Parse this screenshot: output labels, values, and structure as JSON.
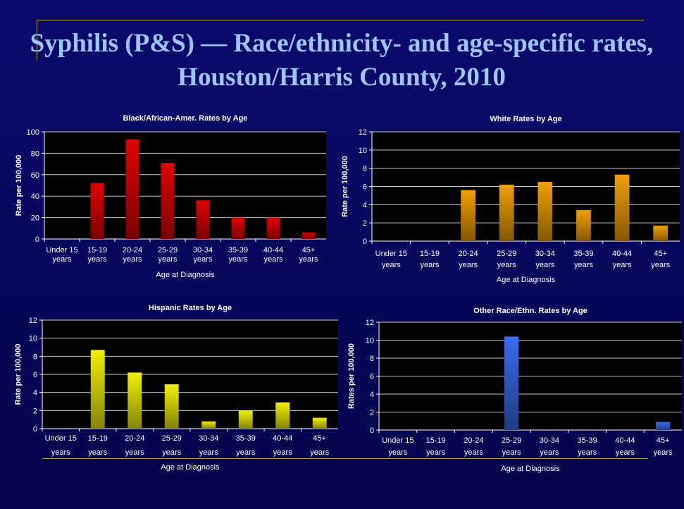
{
  "slide": {
    "title": "Syphilis (P&S) — Race/ethnicity- and age-specific rates, Houston/Harris County, 2010"
  },
  "chart_data": [
    {
      "type": "bar",
      "title": "Black/African-Amer. Rates by Age",
      "xlabel": "Age at Diagnosis",
      "ylabel": "Rate per 100,000",
      "categories": [
        "Under 15|years",
        "15-19|years",
        "20-24|years",
        "25-29|years",
        "30-34|years",
        "35-39|years",
        "40-44|years",
        "45+|years"
      ],
      "values": [
        0,
        52,
        93,
        71,
        36,
        20,
        20,
        6
      ],
      "ylim": [
        0,
        100
      ],
      "yticks": [
        0,
        20,
        40,
        60,
        80,
        100
      ],
      "grid": true,
      "color": "#e00000"
    },
    {
      "type": "bar",
      "title": "White Rates by Age",
      "xlabel": "Age at Diagnosis",
      "ylabel": "Rate per 100,000",
      "categories": [
        "Under 15|years",
        "15-19|years",
        "20-24|years",
        "25-29|years",
        "30-34|years",
        "35-39|years",
        "40-44|years",
        "45+|years"
      ],
      "values": [
        0,
        0,
        5.6,
        6.2,
        6.5,
        3.4,
        7.3,
        1.7
      ],
      "ylim": [
        0,
        12
      ],
      "yticks": [
        0,
        2,
        4,
        6,
        8,
        10,
        12
      ],
      "grid": true,
      "color": "#f0a000"
    },
    {
      "type": "bar",
      "title": "Hispanic Rates by Age",
      "xlabel": "Age at Diagnosis",
      "ylabel": "Rate per 100,000",
      "categories": [
        "Under 15|years",
        "15-19|years",
        "20-24|years",
        "25-29|years",
        "30-34|years",
        "35-39|years",
        "40-44|years",
        "45+|years"
      ],
      "values": [
        0,
        8.7,
        6.2,
        4.9,
        0.8,
        2.0,
        2.9,
        1.2
      ],
      "ylim": [
        0,
        12
      ],
      "yticks": [
        0,
        2,
        4,
        6,
        8,
        10,
        12
      ],
      "grid": true,
      "color": "#f0f000"
    },
    {
      "type": "bar",
      "title": "Other Race/Ethn. Rates by Age",
      "xlabel": "Age at Diagnosis",
      "ylabel": "Rates per 100,000",
      "categories": [
        "Under 15|years",
        "15-19|years",
        "20-24|years",
        "25-29|years",
        "30-34|years",
        "35-39|years",
        "40-44|years",
        "45+|years"
      ],
      "values": [
        0,
        0,
        0,
        10.4,
        0,
        0,
        0,
        0.9
      ],
      "ylim": [
        0,
        12
      ],
      "yticks": [
        0,
        2,
        4,
        6,
        8,
        10,
        12
      ],
      "grid": true,
      "color": "#3a6cf0"
    }
  ]
}
